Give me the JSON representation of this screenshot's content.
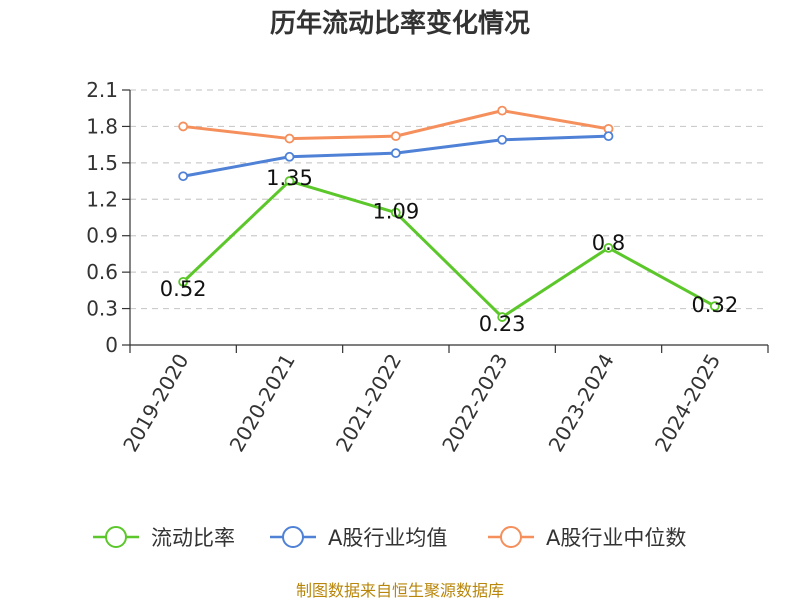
{
  "chart_data": {
    "type": "line",
    "title": "历年流动比率变化情况",
    "xlabel": "",
    "ylabel": "",
    "categories": [
      "2019-2020",
      "2020-2021",
      "2021-2022",
      "2022-2023",
      "2023-2024",
      "2024-2025"
    ],
    "ylim": [
      0,
      2.1
    ],
    "yticks": [
      "0",
      "0.3",
      "0.6",
      "0.9",
      "1.2",
      "1.5",
      "1.8",
      "2.1"
    ],
    "grid": true,
    "legend_position": "bottom",
    "series": [
      {
        "name": "流动比率",
        "color": "#5cc72a",
        "values": [
          0.52,
          1.35,
          1.09,
          0.23,
          0.8,
          0.32
        ],
        "labels": [
          "0.52",
          "1.35",
          "1.09",
          "0.23",
          "0.8",
          "0.32"
        ]
      },
      {
        "name": "A股行业均值",
        "color": "#4f81d6",
        "values": [
          1.39,
          1.55,
          1.58,
          1.69,
          1.72,
          null
        ]
      },
      {
        "name": "A股行业中位数",
        "color": "#f58f5c",
        "values": [
          1.8,
          1.7,
          1.72,
          1.93,
          1.78,
          null
        ]
      }
    ]
  },
  "footer": "制图数据来自恒生聚源数据库"
}
